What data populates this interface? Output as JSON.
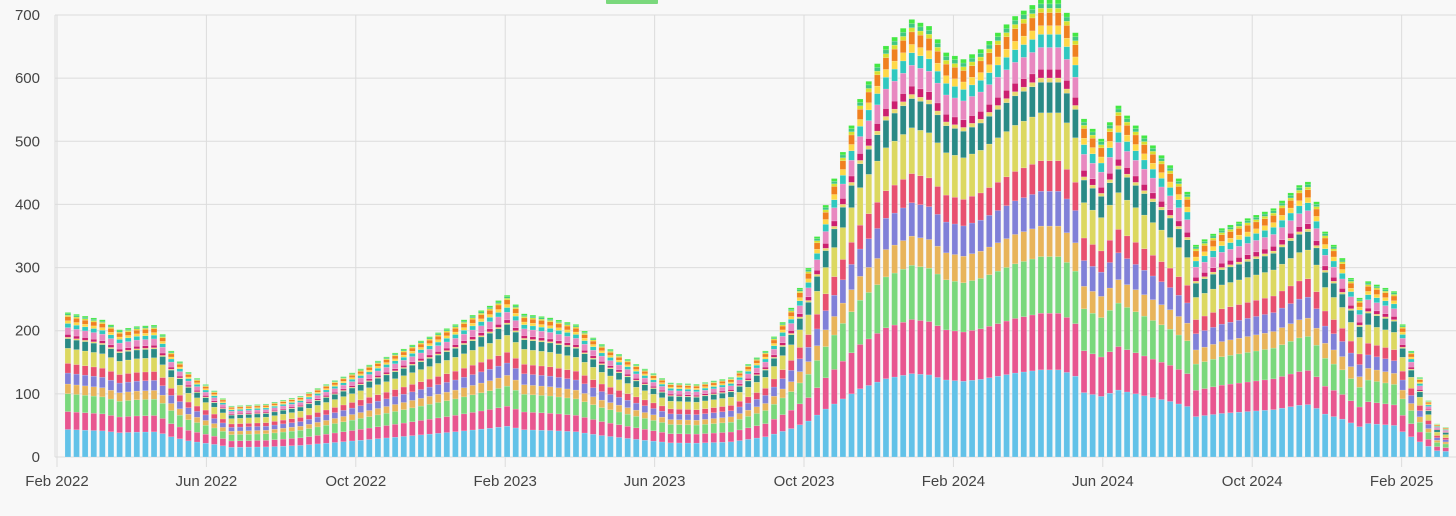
{
  "chart_data": {
    "type": "bar",
    "stacked": true,
    "ylim": [
      0,
      700
    ],
    "y_ticks": [
      0,
      100,
      200,
      300,
      400,
      500,
      600,
      700
    ],
    "x_tick_labels": [
      "Feb 2022",
      "Jun 2022",
      "Oct 2022",
      "Feb 2023",
      "Jun 2023",
      "Oct 2023",
      "Feb 2024",
      "Jun 2024",
      "Oct 2024",
      "Feb 2025"
    ],
    "grid": true,
    "legend_placement": "top",
    "total_weeks": 162,
    "weeks_per_tick": 17.35,
    "totals_keypoints": [
      [
        0,
        0
      ],
      [
        1,
        218
      ],
      [
        5,
        207
      ],
      [
        7,
        192
      ],
      [
        9,
        197
      ],
      [
        11,
        199
      ],
      [
        12,
        185
      ],
      [
        13,
        160
      ],
      [
        15,
        128
      ],
      [
        18,
        100
      ],
      [
        20,
        77
      ],
      [
        24,
        80
      ],
      [
        28,
        92
      ],
      [
        34,
        127
      ],
      [
        40,
        163
      ],
      [
        46,
        200
      ],
      [
        50,
        228
      ],
      [
        52,
        244
      ],
      [
        54,
        216
      ],
      [
        57,
        210
      ],
      [
        60,
        200
      ],
      [
        63,
        170
      ],
      [
        67,
        140
      ],
      [
        71,
        112
      ],
      [
        74,
        110
      ],
      [
        78,
        120
      ],
      [
        82,
        160
      ],
      [
        85,
        225
      ],
      [
        87,
        285
      ],
      [
        89,
        380
      ],
      [
        91,
        460
      ],
      [
        93,
        540
      ],
      [
        96,
        620
      ],
      [
        99,
        660
      ],
      [
        101,
        650
      ],
      [
        103,
        610
      ],
      [
        105,
        600
      ],
      [
        107,
        615
      ],
      [
        111,
        665
      ],
      [
        114,
        690
      ],
      [
        116,
        690
      ],
      [
        117,
        670
      ],
      [
        118,
        640
      ],
      [
        119,
        510
      ],
      [
        121,
        480
      ],
      [
        123,
        530
      ],
      [
        125,
        500
      ],
      [
        127,
        470
      ],
      [
        129,
        440
      ],
      [
        131,
        400
      ],
      [
        132,
        320
      ],
      [
        135,
        345
      ],
      [
        138,
        360
      ],
      [
        141,
        375
      ],
      [
        144,
        410
      ],
      [
        145,
        415
      ],
      [
        146,
        385
      ],
      [
        147,
        340
      ],
      [
        149,
        300
      ],
      [
        151,
        240
      ],
      [
        152,
        265
      ],
      [
        155,
        250
      ],
      [
        156,
        200
      ],
      [
        157,
        160
      ],
      [
        158,
        120
      ],
      [
        159,
        85
      ],
      [
        160,
        50
      ],
      [
        161,
        45
      ]
    ],
    "series": [
      {
        "color": "#62c2e8",
        "share": 0.2
      },
      {
        "color": "#e85690",
        "share": 0.13
      },
      {
        "color": "#7ad87c",
        "share": 0.13
      },
      {
        "color": "#e8b45a",
        "share": 0.07
      },
      {
        "color": "#8080d8",
        "share": 0.08
      },
      {
        "color": "#e85070",
        "share": 0.07
      },
      {
        "color": "#dcd860",
        "share": 0.11
      },
      {
        "color": "#2a8a86",
        "share": 0.07
      },
      {
        "color": "#e8d870",
        "share": 0.01
      },
      {
        "color": "#cc2070",
        "share": 0.02
      },
      {
        "color": "#e888c0",
        "share": 0.05
      },
      {
        "color": "#30c8c0",
        "share": 0.03
      },
      {
        "color": "#ffd848",
        "share": 0.02
      },
      {
        "color": "#f08020",
        "share": 0.03
      },
      {
        "color": "#d8e030",
        "share": 0.01
      },
      {
        "color": "#40c880",
        "share": 0.01
      },
      {
        "color": "#44e844",
        "share": 0.01
      }
    ]
  },
  "legend": {
    "visible_swatch_color": "#7ad87c"
  }
}
